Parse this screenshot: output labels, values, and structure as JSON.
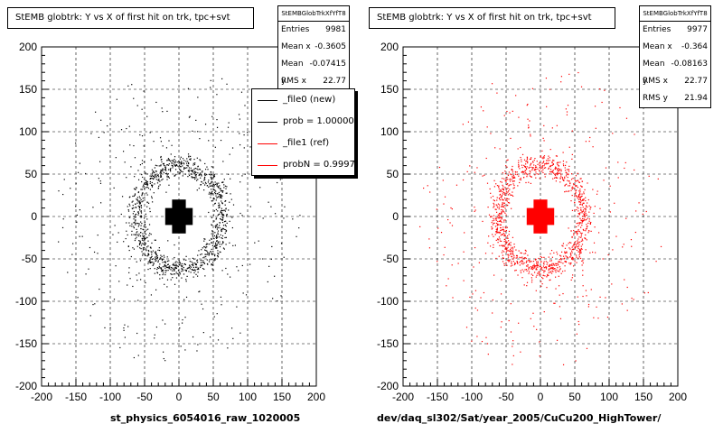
{
  "chart_data": [
    {
      "type": "scatter",
      "title": "StEMB globtrk: Y vs X of first hit on trk, tpc+svt",
      "xlabel": "st_physics_6054016_raw_1020005",
      "ylabel": "",
      "xlim": [
        -200,
        200
      ],
      "ylim": [
        -200,
        200
      ],
      "xticks": [
        "-200",
        "-150",
        "-100",
        "-50",
        "0",
        "50",
        "100",
        "150",
        "200"
      ],
      "yticks": [
        "200",
        "150",
        "100",
        "50",
        "0",
        "-50",
        "-100",
        "-150",
        "-200"
      ],
      "grid": true,
      "color": "#000000",
      "stats": {
        "name": "StEMBGlobTrkXfYfT8",
        "rows": [
          {
            "label": "Entries",
            "value": "9981"
          },
          {
            "label": "Mean x",
            "value": "-0.3605"
          },
          {
            "label": "Mean y",
            "value": "-0.07415"
          },
          {
            "label": "RMS x",
            "value": "22.77"
          }
        ]
      },
      "legend": [
        {
          "label": "_file0 (new)",
          "color": "#000000"
        },
        {
          "label": "prob = 1.000000",
          "color": "#000000"
        },
        {
          "label": "_file1 (ref)",
          "color": "#ff0000"
        },
        {
          "label": "probN = 0.99974",
          "color": "#ff0000"
        }
      ]
    },
    {
      "type": "scatter",
      "title": "StEMB globtrk: Y vs X of first hit on trk, tpc+svt",
      "xlabel": "dev/daq_sl302/Sat/year_2005/CuCu200_HighTower/",
      "ylabel": "",
      "xlim": [
        -200,
        200
      ],
      "ylim": [
        -200,
        200
      ],
      "xticks": [
        "-200",
        "-150",
        "-100",
        "-50",
        "0",
        "50",
        "100",
        "150",
        "200"
      ],
      "yticks": [
        "200",
        "150",
        "100",
        "50",
        "0",
        "-50",
        "-100",
        "-150",
        "-200"
      ],
      "grid": true,
      "color": "#ff0000",
      "stats": {
        "name": "StEMBGlobTrkXfYfT8",
        "rows": [
          {
            "label": "Entries",
            "value": "9977"
          },
          {
            "label": "Mean x",
            "value": "-0.364"
          },
          {
            "label": "Mean y",
            "value": "-0.08163"
          },
          {
            "label": "RMS x",
            "value": "22.77"
          },
          {
            "label": "RMS y",
            "value": "21.94"
          }
        ]
      }
    }
  ]
}
